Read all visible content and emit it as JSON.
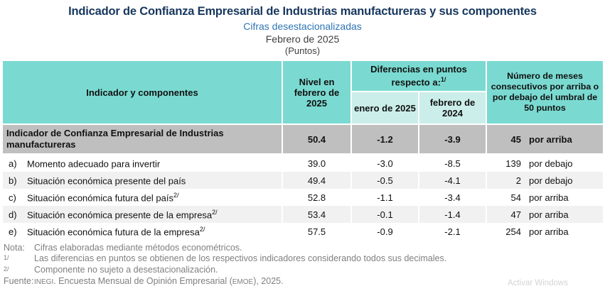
{
  "header": {
    "title": "Indicador de Confianza Empresarial de Industrias manufactureras y sus componentes",
    "subtitle": "Cifras desestacionalizadas",
    "period": "Febrero de 2025",
    "units": "(Puntos)"
  },
  "colors": {
    "title_navy": "#17375D",
    "subtitle_blue": "#2E75B6",
    "header_teal": "#7ADAD1",
    "subheader_light_teal": "#CBEEEA",
    "total_row_gray": "#BFBFBF",
    "stripe_gray": "#F1F1F1",
    "notes_gray": "#7F7F7F"
  },
  "table": {
    "header": {
      "col_indicator": "Indicador y componentes",
      "col_level": "Nivel en febrero de 2025",
      "col_diff_group": "Diferencias en puntos respecto a:",
      "col_diff_group_sup": "1/",
      "col_diff_jan": "enero de 2025",
      "col_diff_feb": "febrero de 2024",
      "col_months": "Número de meses consecutivos por arriba o por debajo del umbral de 50 puntos"
    },
    "total_row": {
      "label": "Indicador de Confianza Empresarial de Industrias manufactureras",
      "level": "50.4",
      "diff_jan": "-1.2",
      "diff_feb": "-3.9",
      "months": "45",
      "direction": "por arriba"
    },
    "rows": [
      {
        "letter": "a)",
        "label": "Momento adecuado para invertir",
        "sup": "",
        "level": "39.0",
        "diff_jan": "-3.0",
        "diff_feb": "-8.5",
        "months": "139",
        "direction": "por debajo"
      },
      {
        "letter": "b)",
        "label": "Situación económica presente del país",
        "sup": "",
        "level": "49.4",
        "diff_jan": "-0.5",
        "diff_feb": "-4.1",
        "months": "2",
        "direction": "por debajo"
      },
      {
        "letter": "c)",
        "label": "Situación económica futura del país",
        "sup": "2/",
        "level": "52.8",
        "diff_jan": "-1.1",
        "diff_feb": "-3.4",
        "months": "54",
        "direction": "por arriba"
      },
      {
        "letter": "d)",
        "label": "Situación económica presente de la empresa",
        "sup": "2/",
        "level": "53.4",
        "diff_jan": "-0.1",
        "diff_feb": "-1.4",
        "months": "47",
        "direction": "por arriba"
      },
      {
        "letter": "e)",
        "label": "Situación económica futura de la empresa",
        "sup": "2/",
        "level": "57.5",
        "diff_jan": "-0.9",
        "diff_feb": "-2.1",
        "months": "254",
        "direction": "por arriba"
      }
    ]
  },
  "notes": {
    "nota_label": "Nota:",
    "nota_text": "Cifras elaboradas mediante métodos econométricos.",
    "fn1_marker": "1/",
    "fn1_text": "Las diferencias en puntos se obtienen de los respectivos indicadores considerando todos sus decimales.",
    "fn2_marker": "2/",
    "fn2_text": "Componente no sujeto a desestacionalización.",
    "fuente_label": "Fuente:",
    "fuente_inegi": "INEGI",
    "fuente_mid": ". Encuesta Mensual de Opinión Empresarial (",
    "fuente_emoe": "EMOE",
    "fuente_end": "), 2025."
  },
  "watermark": "Activar Windows"
}
